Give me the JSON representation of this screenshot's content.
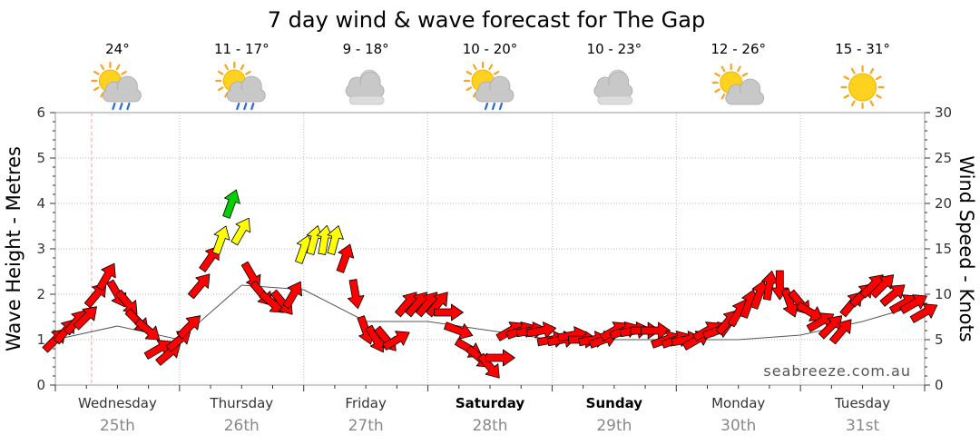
{
  "header": {
    "title": "7 day wind & wave forecast for The Gap"
  },
  "colors": {
    "low": "#ff0000",
    "mid": "#ffff00",
    "high": "#00d000",
    "swell_line": "#555555",
    "now_line": "#ff9999"
  },
  "chart_data": {
    "type": "line",
    "title": "7 day wind & wave forecast for The Gap",
    "ylabel_left": "Wave Height - Metres",
    "ylabel_right": "Wind Speed - Knots",
    "ylim_left": [
      0,
      6
    ],
    "ylim_right": [
      0,
      30
    ],
    "yticks_left": [
      "0",
      "1",
      "2",
      "3",
      "4",
      "5",
      "6"
    ],
    "yticks_right": [
      "0",
      "5",
      "10",
      "15",
      "20",
      "25",
      "30"
    ],
    "grid": true,
    "watermark": "seabreeze.com.au",
    "days": [
      {
        "name": "Wednesday",
        "date": "25th",
        "temp": "24°",
        "icon": "sun-cloud-rain-icon",
        "bold": false
      },
      {
        "name": "Thursday",
        "date": "26th",
        "temp": "11 - 17°",
        "icon": "sun-cloud-rain-icon",
        "bold": false
      },
      {
        "name": "Friday",
        "date": "27th",
        "temp": "9 - 18°",
        "icon": "cloud-icon",
        "bold": false
      },
      {
        "name": "Saturday",
        "date": "28th",
        "temp": "10 - 20°",
        "icon": "sun-cloud-rain-icon",
        "bold": true
      },
      {
        "name": "Sunday",
        "date": "29th",
        "temp": "10 - 23°",
        "icon": "cloud-icon",
        "bold": true
      },
      {
        "name": "Monday",
        "date": "30th",
        "temp": "12 - 26°",
        "icon": "sun-cloud-icon",
        "bold": false
      },
      {
        "name": "Tuesday",
        "date": "31st",
        "temp": "15 - 31°",
        "icon": "sun-icon",
        "bold": false
      }
    ],
    "now_hour": 7,
    "series": [
      {
        "name": "Wind Speed",
        "units": "knots",
        "hours": [
          0,
          2,
          4,
          6,
          8,
          10,
          12,
          14,
          16,
          18,
          20,
          22,
          24,
          26,
          28,
          30,
          32,
          34,
          36,
          38,
          40,
          42,
          44,
          46,
          48,
          50,
          52,
          54,
          56,
          58,
          60,
          62,
          64,
          66,
          68,
          70,
          72,
          74,
          76,
          78,
          80,
          82,
          84,
          86,
          88,
          90,
          92,
          94,
          96,
          98,
          100,
          102,
          104,
          106,
          108,
          110,
          112,
          114,
          116,
          118,
          120,
          122,
          124,
          126,
          128,
          130,
          132,
          134,
          136,
          138,
          140,
          142,
          144,
          146,
          148,
          150,
          152,
          154,
          156,
          158,
          160,
          162,
          164,
          166,
          168
        ],
        "values": [
          5,
          6,
          7,
          7.5,
          10,
          12,
          10,
          9,
          7,
          6,
          4,
          3.5,
          5,
          6.5,
          11,
          14,
          16,
          20,
          17,
          12,
          10,
          9,
          9,
          10,
          15,
          16,
          16,
          16,
          14,
          10,
          6,
          5,
          5,
          5,
          9,
          9,
          9,
          9,
          8,
          6,
          4,
          3,
          2,
          3,
          6,
          6,
          6,
          6,
          5,
          5,
          5.5,
          5,
          5,
          5,
          6,
          6,
          6,
          6,
          6,
          5,
          5,
          5,
          5,
          6,
          6,
          7,
          8,
          9,
          10,
          11,
          11,
          9,
          9,
          8,
          7,
          6.5,
          6,
          9,
          10,
          11,
          11,
          10,
          9,
          9,
          8
        ],
        "directions_deg": [
          45,
          40,
          40,
          45,
          40,
          30,
          150,
          140,
          135,
          130,
          60,
          50,
          50,
          45,
          40,
          35,
          20,
          20,
          30,
          150,
          140,
          130,
          140,
          30,
          20,
          15,
          10,
          15,
          20,
          170,
          160,
          150,
          140,
          60,
          40,
          40,
          40,
          40,
          90,
          110,
          120,
          130,
          140,
          90,
          60,
          70,
          80,
          80,
          80,
          80,
          80,
          90,
          80,
          70,
          60,
          70,
          80,
          90,
          90,
          70,
          70,
          80,
          60,
          60,
          70,
          40,
          30,
          20,
          20,
          10,
          180,
          160,
          140,
          120,
          60,
          45,
          40,
          40,
          45,
          45,
          45,
          50,
          60,
          60,
          60
        ]
      },
      {
        "name": "Wave Height",
        "units": "metres",
        "hours": [
          0,
          12,
          24,
          36,
          48,
          60,
          72,
          84,
          96,
          108,
          120,
          132,
          144,
          156,
          168
        ],
        "values": [
          1.0,
          1.3,
          1.0,
          2.2,
          2.1,
          1.4,
          1.4,
          1.2,
          1.0,
          1.0,
          1.0,
          1.0,
          1.1,
          1.4,
          1.8
        ]
      }
    ]
  }
}
